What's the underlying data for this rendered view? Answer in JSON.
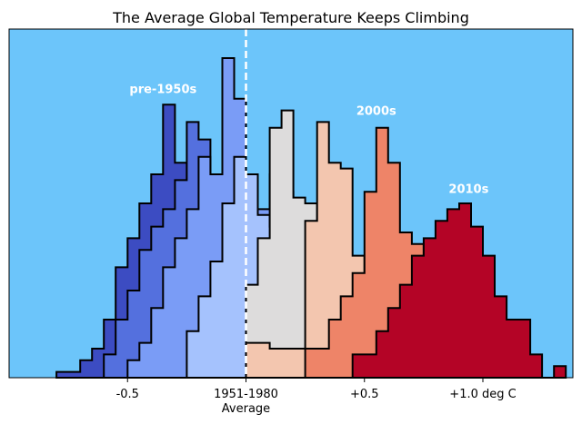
{
  "chart_data": {
    "type": "step-histogram",
    "title": "The Average Global Temperature Keeps Climbing",
    "xlabel": "",
    "ylabel": "",
    "xlim": [
      -1.0,
      1.38
    ],
    "ylim": [
      0,
      30
    ],
    "grid": false,
    "background_color": "#6cc5fa",
    "x_ticks": [
      {
        "value": -0.5,
        "label": "-0.5",
        "sublabel": ""
      },
      {
        "value": 0.0,
        "label": "1951-1980",
        "sublabel": "Average"
      },
      {
        "value": 0.5,
        "label": "+0.5",
        "sublabel": ""
      },
      {
        "value": 1.0,
        "label": "+1.0 deg C",
        "sublabel": ""
      }
    ],
    "reference_line": {
      "x": 0.0,
      "style": "dashed",
      "color": "#ffffff"
    },
    "annotations": [
      {
        "text": "pre-1950s",
        "x": -0.35,
        "y": 24.5
      },
      {
        "text": "2000s",
        "x": 0.55,
        "y": 22.6
      },
      {
        "text": "2010s",
        "x": 0.94,
        "y": 15.9
      }
    ],
    "series": [
      {
        "name": "",
        "color": "#3c4cc2",
        "edges": [
          -0.8,
          -0.7,
          -0.65,
          -0.6,
          -0.55,
          -0.5,
          -0.45,
          -0.4,
          -0.35,
          -0.3,
          -0.25,
          -0.2,
          -0.15
        ],
        "values": [
          0.5,
          1.5,
          2.5,
          5,
          9.5,
          12,
          15,
          17.5,
          23.5,
          18.5,
          15.5,
          11.5
        ]
      },
      {
        "name": "",
        "color": "#5470de",
        "edges": [
          -0.6,
          -0.55,
          -0.5,
          -0.45,
          -0.4,
          -0.35,
          -0.3,
          -0.25,
          -0.2,
          -0.15,
          -0.1,
          -0.05,
          0.0,
          0.05,
          0.1
        ],
        "values": [
          2,
          5,
          7.5,
          11,
          13,
          14.5,
          17,
          22,
          20.5,
          15,
          14,
          11.5,
          14.5,
          12.5
        ]
      },
      {
        "name": "",
        "color": "#7a9cf6",
        "edges": [
          -0.5,
          -0.45,
          -0.4,
          -0.35,
          -0.3,
          -0.25,
          -0.2,
          -0.15,
          -0.1,
          -0.05,
          0.0,
          0.05,
          0.1,
          0.15,
          0.2,
          0.25
        ],
        "values": [
          1.5,
          3,
          6,
          9.5,
          12,
          14.5,
          19,
          17.5,
          27.5,
          24,
          16,
          14.5,
          17.5,
          16,
          11
        ]
      },
      {
        "name": "",
        "color": "#a5c2fd",
        "edges": [
          -0.25,
          -0.2,
          -0.15,
          -0.1,
          -0.05,
          0.0,
          0.05,
          0.1,
          0.15,
          0.2,
          0.25
        ],
        "values": [
          4,
          7,
          10,
          15,
          19,
          17.5,
          14,
          13,
          15,
          13.5
        ]
      },
      {
        "name": "",
        "color": "#dddcdc",
        "edges": [
          0.0,
          0.05,
          0.1,
          0.15,
          0.2,
          0.25,
          0.3,
          0.35
        ],
        "values": [
          8,
          12,
          21.5,
          23,
          15.5,
          15,
          13.5
        ]
      },
      {
        "name": "",
        "color": "#f3c6af",
        "edges": [
          0.0,
          0.1,
          0.25,
          0.3,
          0.35,
          0.4,
          0.45,
          0.5,
          0.55
        ],
        "values": [
          3,
          2.5,
          13.5,
          22,
          18.5,
          18,
          10.5,
          6.5
        ]
      },
      {
        "name": "",
        "color": "#ee8468",
        "edges": [
          0.25,
          0.35,
          0.4,
          0.45,
          0.5,
          0.55,
          0.6,
          0.65,
          0.7,
          0.75
        ],
        "values": [
          2.5,
          5,
          7,
          9,
          16,
          21.5,
          18.5,
          12.5,
          11.5
        ]
      },
      {
        "name": "",
        "color": "#b40426",
        "edges": [
          0.45,
          0.55,
          0.6,
          0.65,
          0.7,
          0.75,
          0.8,
          0.85,
          0.9,
          0.95,
          1.0,
          1.05,
          1.1,
          1.15,
          1.2,
          1.25,
          1.3,
          1.35
        ],
        "values": [
          2,
          4,
          6,
          8,
          10.5,
          12,
          13.5,
          14.5,
          15,
          13,
          10.5,
          7,
          5,
          5,
          2,
          0,
          1
        ]
      }
    ]
  }
}
